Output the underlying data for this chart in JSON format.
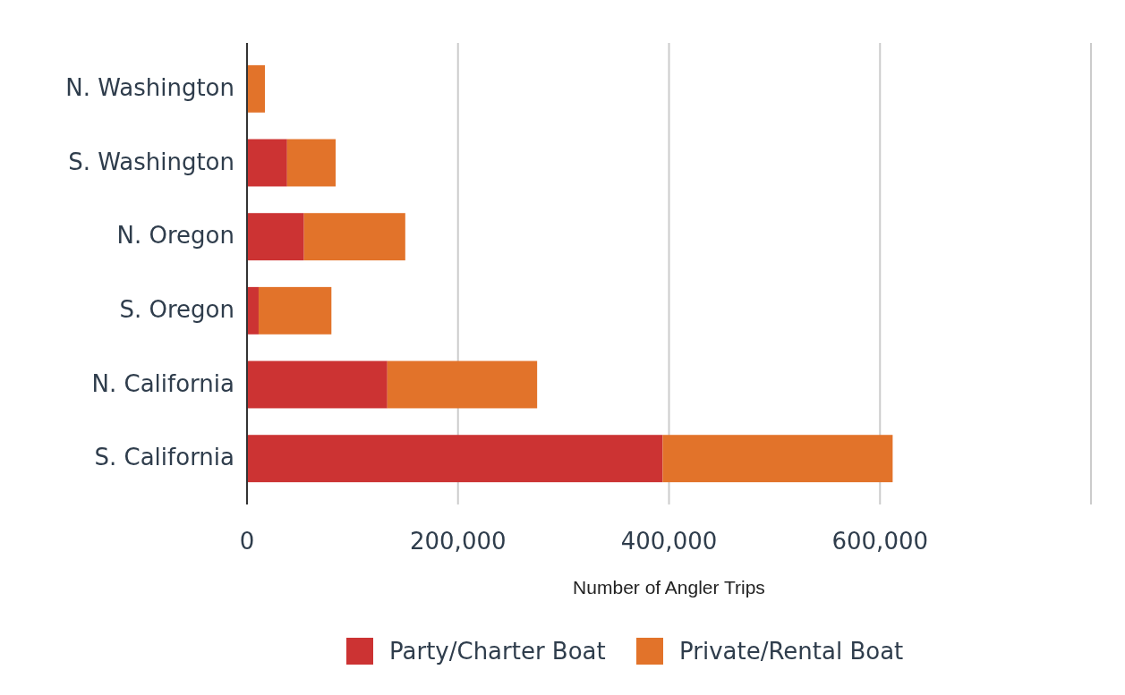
{
  "chart_data": {
    "type": "bar",
    "orientation": "horizontal",
    "stacked": true,
    "categories": [
      "N. Washington",
      "S. Washington",
      "N. Oregon",
      "S. Oregon",
      "N. California",
      "S. California"
    ],
    "series": [
      {
        "name": "Party/Charter Boat",
        "color": "#cc3333",
        "values": [
          null,
          38000,
          54000,
          11000,
          133000,
          394000
        ]
      },
      {
        "name": "Private/Rental Boat",
        "color": "#e2732a",
        "values": [
          17000,
          46000,
          96000,
          69000,
          142000,
          218000
        ]
      }
    ],
    "xlabel": "Number of Angler Trips",
    "xlim": [
      0,
      800000
    ],
    "xticks": [
      {
        "value": 0,
        "label": "0"
      },
      {
        "value": 200000,
        "label": "200,000"
      },
      {
        "value": 400000,
        "label": "400,000"
      },
      {
        "value": 600000,
        "label": "600,000"
      },
      {
        "value": 800000,
        "label": null
      }
    ],
    "grid": "x",
    "legend": "bottom"
  }
}
